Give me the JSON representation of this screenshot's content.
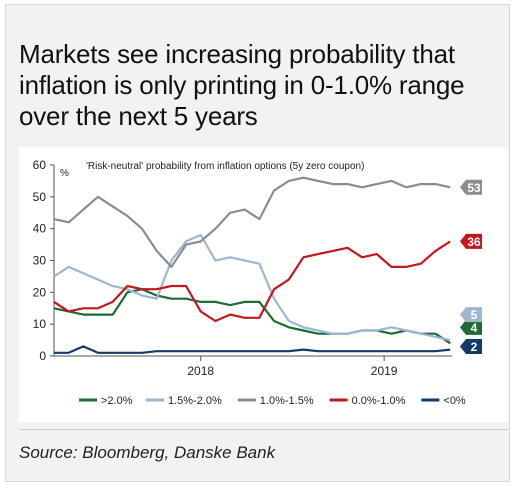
{
  "title": "Markets see increasing probability that inflation is only printing in 0-1.0% range over the next 5 years",
  "source": "Source: Bloomberg, Danske Bank",
  "chart_data": {
    "type": "line",
    "subtitle": "'Risk-neutral' probability from inflation options (5y zero coupon)",
    "y_unit": "%",
    "ylim": [
      0,
      60
    ],
    "yticks": [
      0,
      10,
      20,
      30,
      40,
      50,
      60
    ],
    "xlim": [
      2017.2,
      2019.37
    ],
    "xticks": [
      {
        "label": "2018",
        "x": 2018.0
      },
      {
        "label": "2019",
        "x": 2019.0
      }
    ],
    "grid": false,
    "legend_position": "bottom",
    "series": [
      {
        "name": ">2.0%",
        "color": "#1e6b35",
        "end_label": "4",
        "x": [
          2017.2,
          2017.28,
          2017.36,
          2017.44,
          2017.52,
          2017.6,
          2017.68,
          2017.76,
          2017.84,
          2017.92,
          2018.0,
          2018.08,
          2018.16,
          2018.24,
          2018.32,
          2018.4,
          2018.48,
          2018.56,
          2018.64,
          2018.72,
          2018.8,
          2018.88,
          2018.96,
          2019.04,
          2019.12,
          2019.2,
          2019.28,
          2019.36
        ],
        "y": [
          15,
          14,
          13,
          13,
          13,
          20,
          21,
          19,
          18,
          18,
          17,
          17,
          16,
          17,
          17,
          11,
          9,
          8,
          7,
          7,
          7,
          8,
          8,
          7,
          8,
          7,
          7,
          4
        ]
      },
      {
        "name": "1.5%-2.0%",
        "color": "#9fb6d2",
        "end_label": "5",
        "x": [
          2017.2,
          2017.28,
          2017.36,
          2017.44,
          2017.52,
          2017.6,
          2017.68,
          2017.76,
          2017.84,
          2017.92,
          2018.0,
          2018.08,
          2018.16,
          2018.24,
          2018.32,
          2018.4,
          2018.48,
          2018.56,
          2018.64,
          2018.72,
          2018.8,
          2018.88,
          2018.96,
          2019.04,
          2019.12,
          2019.2,
          2019.28,
          2019.36
        ],
        "y": [
          25,
          28,
          26,
          24,
          22,
          21,
          19,
          18,
          30,
          36,
          38,
          30,
          31,
          30,
          29,
          18,
          11,
          9,
          8,
          7,
          7,
          8,
          8,
          9,
          8,
          7,
          6,
          5
        ]
      },
      {
        "name": "1.0%-1.5%",
        "color": "#8c8c8c",
        "end_label": "53",
        "x": [
          2017.2,
          2017.28,
          2017.36,
          2017.44,
          2017.52,
          2017.6,
          2017.68,
          2017.76,
          2017.84,
          2017.92,
          2018.0,
          2018.08,
          2018.16,
          2018.24,
          2018.32,
          2018.4,
          2018.48,
          2018.56,
          2018.64,
          2018.72,
          2018.8,
          2018.88,
          2018.96,
          2019.04,
          2019.12,
          2019.2,
          2019.28,
          2019.36
        ],
        "y": [
          43,
          42,
          46,
          50,
          47,
          44,
          40,
          33,
          28,
          35,
          36,
          40,
          45,
          46,
          43,
          52,
          55,
          56,
          55,
          54,
          54,
          53,
          54,
          55,
          53,
          54,
          54,
          53
        ]
      },
      {
        "name": "0.0%-1.0%",
        "color": "#c4161c",
        "end_label": "36",
        "x": [
          2017.2,
          2017.28,
          2017.36,
          2017.44,
          2017.52,
          2017.6,
          2017.68,
          2017.76,
          2017.84,
          2017.92,
          2018.0,
          2018.08,
          2018.16,
          2018.24,
          2018.32,
          2018.4,
          2018.48,
          2018.56,
          2018.64,
          2018.72,
          2018.8,
          2018.88,
          2018.96,
          2019.04,
          2019.12,
          2019.2,
          2019.28,
          2019.36
        ],
        "y": [
          17,
          14,
          15,
          15,
          17,
          22,
          21,
          21,
          22,
          22,
          14,
          11,
          13,
          12,
          12,
          21,
          24,
          31,
          32,
          33,
          34,
          31,
          32,
          28,
          28,
          29,
          33,
          36
        ]
      },
      {
        "name": "<0%",
        "color": "#123b66",
        "end_label": "2",
        "x": [
          2017.2,
          2017.28,
          2017.36,
          2017.44,
          2017.52,
          2017.6,
          2017.68,
          2017.76,
          2017.84,
          2017.92,
          2018.0,
          2018.08,
          2018.16,
          2018.24,
          2018.32,
          2018.4,
          2018.48,
          2018.56,
          2018.64,
          2018.72,
          2018.8,
          2018.88,
          2018.96,
          2019.04,
          2019.12,
          2019.2,
          2019.28,
          2019.36
        ],
        "y": [
          1,
          1,
          3,
          1,
          1,
          1,
          1,
          1.5,
          1.5,
          1.5,
          1.5,
          1.5,
          1.5,
          1.5,
          1.5,
          1.5,
          1.5,
          2,
          1.5,
          1.5,
          1.5,
          1.5,
          1.5,
          1.5,
          1.5,
          1.5,
          1.5,
          2
        ]
      }
    ]
  }
}
